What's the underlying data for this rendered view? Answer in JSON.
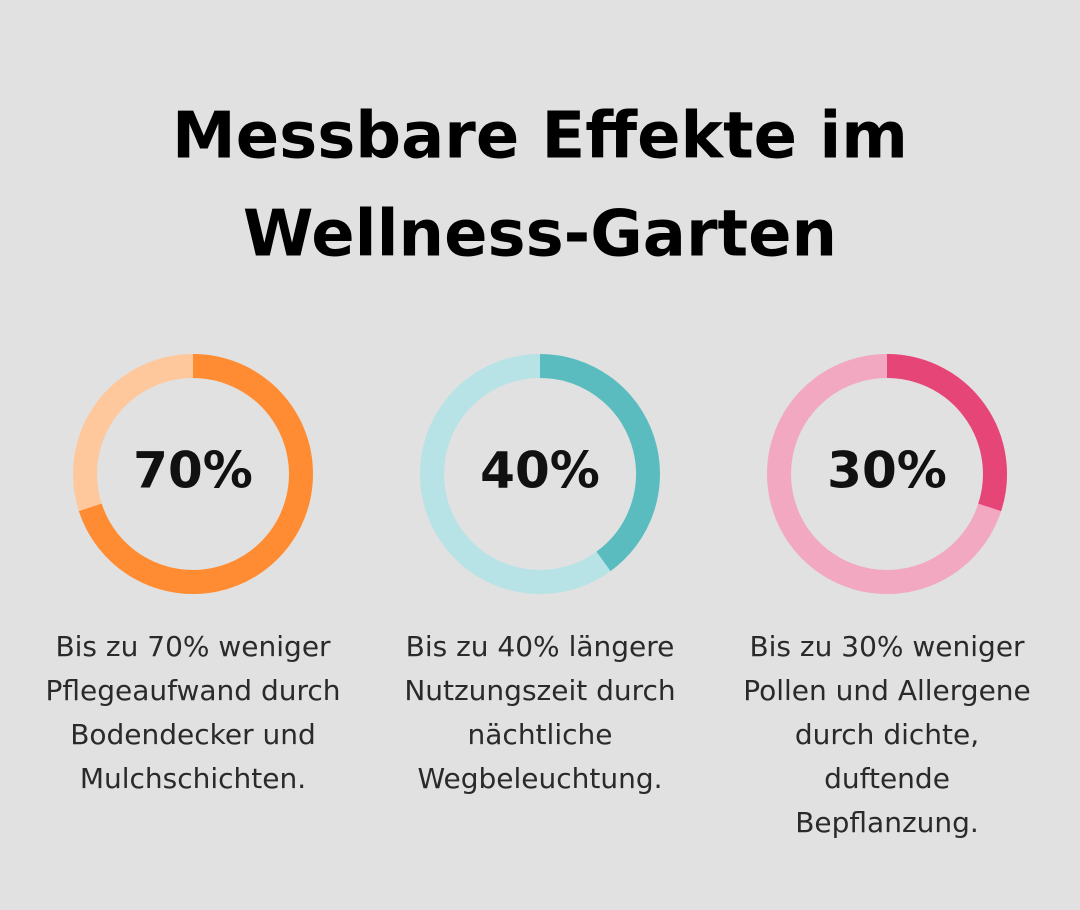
{
  "title_lines": [
    "Messbare Effekte im",
    "Wellness-Garten"
  ],
  "chart_data": [
    {
      "type": "donut",
      "values": [
        70
      ],
      "value_labels": [
        "70%"
      ],
      "color": "#ff8c33",
      "track_color": "#ffc89c",
      "description_lines": [
        "Bis zu 70% weniger",
        "Pflegeaufwand durch",
        "Bodendecker und",
        "Mulchschichten."
      ]
    },
    {
      "type": "donut",
      "values": [
        40
      ],
      "value_labels": [
        "40%"
      ],
      "color": "#5bbcc0",
      "track_color": "#b8e3e6",
      "description_lines": [
        "Bis zu 40% längere",
        "Nutzungszeit durch",
        "nächtliche",
        "Wegbeleuchtung."
      ]
    },
    {
      "type": "donut",
      "values": [
        30
      ],
      "value_labels": [
        "30%"
      ],
      "color": "#e64577",
      "track_color": "#f3a8c1",
      "description_lines": [
        "Bis zu 30% weniger",
        "Pollen und Allergene",
        "durch dichte,",
        "duftende",
        "Bepflanzung."
      ]
    }
  ]
}
